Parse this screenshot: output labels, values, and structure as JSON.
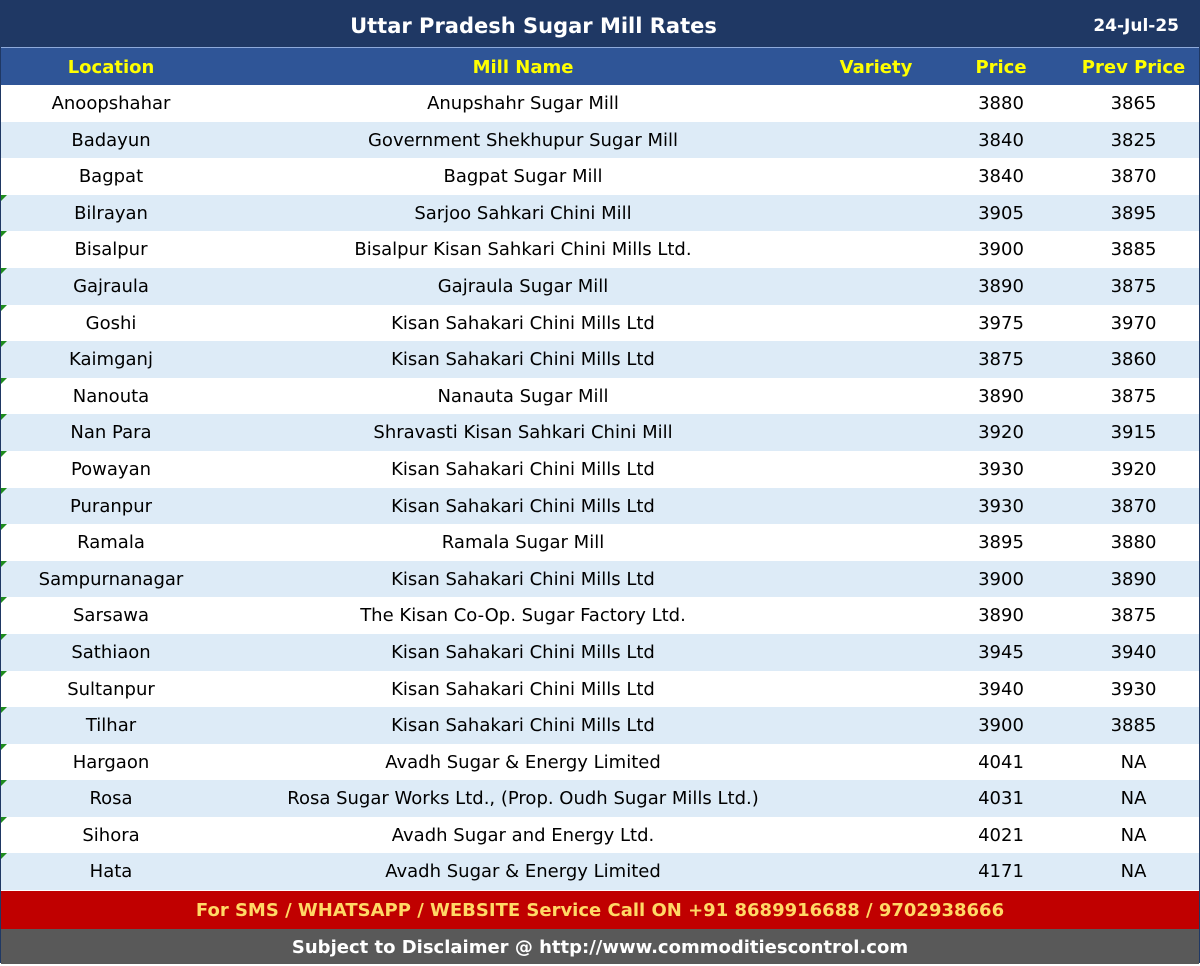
{
  "title": "Uttar Pradesh Sugar Mill Rates",
  "date": "24-Jul-25",
  "columns": {
    "location": "Location",
    "mill_name": "Mill Name",
    "variety": "Variety",
    "price": "Price",
    "prev_price": "Prev Price"
  },
  "rows": [
    {
      "location": "Anoopshahar",
      "mill": "Anupshahr Sugar Mill",
      "variety": "",
      "price": "3880",
      "prev": "3865"
    },
    {
      "location": "Badayun",
      "mill": "Government Shekhupur Sugar Mill",
      "variety": "",
      "price": "3840",
      "prev": "3825"
    },
    {
      "location": "Bagpat",
      "mill": "Bagpat Sugar Mill",
      "variety": "",
      "price": "3840",
      "prev": "3870"
    },
    {
      "location": "Bilrayan",
      "mill": "Sarjoo Sahkari Chini Mill",
      "variety": "",
      "price": "3905",
      "prev": "3895"
    },
    {
      "location": "Bisalpur",
      "mill": "Bisalpur Kisan Sahkari Chini Mills Ltd.",
      "variety": "",
      "price": "3900",
      "prev": "3885"
    },
    {
      "location": "Gajraula",
      "mill": "Gajraula Sugar Mill",
      "variety": "",
      "price": "3890",
      "prev": "3875"
    },
    {
      "location": "Goshi",
      "mill": "Kisan Sahakari Chini Mills Ltd",
      "variety": "",
      "price": "3975",
      "prev": "3970"
    },
    {
      "location": "Kaimganj",
      "mill": "Kisan Sahakari Chini Mills Ltd",
      "variety": "",
      "price": "3875",
      "prev": "3860"
    },
    {
      "location": "Nanouta",
      "mill": "Nanauta Sugar Mill",
      "variety": "",
      "price": "3890",
      "prev": "3875"
    },
    {
      "location": "Nan Para",
      "mill": "Shravasti Kisan Sahkari Chini Mill",
      "variety": "",
      "price": "3920",
      "prev": "3915"
    },
    {
      "location": "Powayan",
      "mill": "Kisan Sahakari Chini Mills Ltd",
      "variety": "",
      "price": "3930",
      "prev": "3920"
    },
    {
      "location": "Puranpur",
      "mill": "Kisan Sahakari Chini Mills Ltd",
      "variety": "",
      "price": "3930",
      "prev": "3870"
    },
    {
      "location": "Ramala",
      "mill": "Ramala Sugar Mill",
      "variety": "",
      "price": "3895",
      "prev": "3880"
    },
    {
      "location": "Sampurnanagar",
      "mill": "Kisan Sahakari Chini Mills Ltd",
      "variety": "",
      "price": "3900",
      "prev": "3890"
    },
    {
      "location": "Sarsawa",
      "mill": "The Kisan Co-Op. Sugar Factory Ltd.",
      "variety": "",
      "price": "3890",
      "prev": "3875"
    },
    {
      "location": "Sathiaon",
      "mill": "Kisan Sahakari Chini Mills Ltd",
      "variety": "",
      "price": "3945",
      "prev": "3940"
    },
    {
      "location": "Sultanpur",
      "mill": "Kisan Sahakari Chini Mills Ltd",
      "variety": "",
      "price": "3940",
      "prev": "3930"
    },
    {
      "location": "Tilhar",
      "mill": "Kisan Sahakari Chini Mills Ltd",
      "variety": "",
      "price": "3900",
      "prev": "3885"
    },
    {
      "location": "Hargaon",
      "mill": "Avadh Sugar & Energy Limited",
      "variety": "",
      "price": "4041",
      "prev": "NA"
    },
    {
      "location": "Rosa",
      "mill": "Rosa Sugar Works Ltd., (Prop. Oudh Sugar Mills Ltd.)",
      "variety": "",
      "price": "4031",
      "prev": "NA"
    },
    {
      "location": "Sihora",
      "mill": "Avadh Sugar and Energy Ltd.",
      "variety": "",
      "price": "4021",
      "prev": "NA"
    },
    {
      "location": "Hata",
      "mill": "Avadh Sugar & Energy Limited",
      "variety": "",
      "price": "4171",
      "prev": "NA"
    }
  ],
  "footer": {
    "sms": "For SMS / WHATSAPP / WEBSITE Service Call  ON  +91 8689916688 / 9702938666",
    "disclaimer": "Subject to Disclaimer @  http://www.commoditiescontrol.com"
  },
  "colors": {
    "title_bg": "#1f3864",
    "header_bg": "#2f5597",
    "header_text": "#ffff00",
    "alt_row": "#ddebf7",
    "sms_bg": "#c00000",
    "sms_text": "#ffd966",
    "disclaimer_bg": "#595959"
  }
}
